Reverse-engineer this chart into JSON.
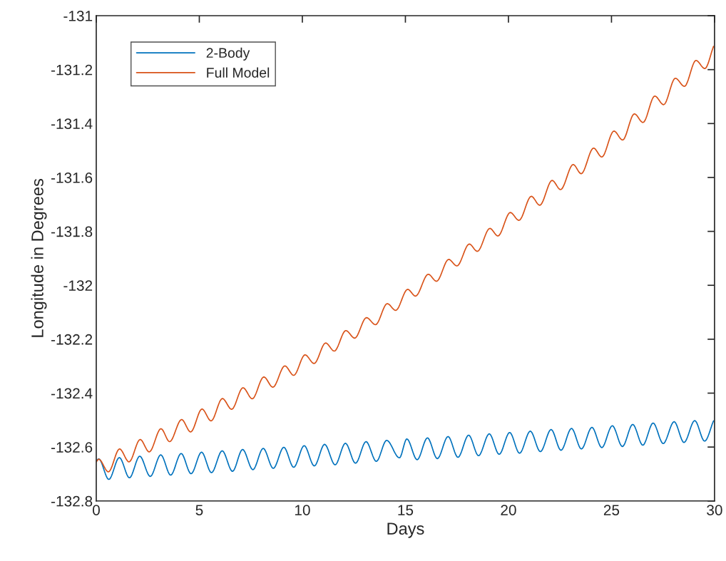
{
  "chart_data": {
    "type": "line",
    "xlabel": "Days",
    "ylabel": "Longitude in Degrees",
    "xlim": [
      0,
      30
    ],
    "ylim": [
      -132.8,
      -131
    ],
    "xticks": [
      0,
      5,
      10,
      15,
      20,
      25,
      30
    ],
    "yticks": [
      -132.8,
      -132.6,
      -132.4,
      -132.2,
      -132,
      -131.8,
      -131.6,
      -131.4,
      -131.2,
      -131
    ],
    "grid": false,
    "legend": "top left",
    "series": [
      {
        "name": "2-Body",
        "color": "#0072bd",
        "x": [
          0,
          0.12,
          0.61,
          1.12,
          1.61,
          2.11,
          2.62,
          3.13,
          3.61,
          4.12,
          4.6,
          5.11,
          5.59,
          6.11,
          6.61,
          7.1,
          7.6,
          8.1,
          8.59,
          9.1,
          9.58,
          10.09,
          10.58,
          11.08,
          11.59,
          12.09,
          12.58,
          13.09,
          13.59,
          14.09,
          14.71,
          15.07,
          15.57,
          16.07,
          16.55,
          17.07,
          17.55,
          18.07,
          18.55,
          19.07,
          19.55,
          20.06,
          20.54,
          21.06,
          21.55,
          22.07,
          22.55,
          23.06,
          23.54,
          24.05,
          24.53,
          25.04,
          25.53,
          26.03,
          26.52,
          27.02,
          27.51,
          28.04,
          28.52,
          29.04,
          29.52,
          29.95
        ],
        "values": [
          -132.651,
          -132.644,
          -132.72,
          -132.639,
          -132.714,
          -132.634,
          -132.709,
          -132.629,
          -132.704,
          -132.624,
          -132.699,
          -132.619,
          -132.695,
          -132.614,
          -132.69,
          -132.609,
          -132.684,
          -132.605,
          -132.679,
          -132.601,
          -132.675,
          -132.595,
          -132.67,
          -132.59,
          -132.666,
          -132.586,
          -132.66,
          -132.58,
          -132.653,
          -132.575,
          -132.64,
          -132.57,
          -132.647,
          -132.566,
          -132.643,
          -132.561,
          -132.638,
          -132.556,
          -132.632,
          -132.551,
          -132.627,
          -132.546,
          -132.623,
          -132.541,
          -132.617,
          -132.535,
          -132.612,
          -132.531,
          -132.607,
          -132.527,
          -132.602,
          -132.521,
          -132.598,
          -132.516,
          -132.593,
          -132.511,
          -132.587,
          -132.506,
          -132.583,
          -132.502,
          -132.578,
          -132.503
        ]
      },
      {
        "name": "Full Model",
        "color": "#d95319",
        "x": [
          0,
          0.12,
          0.59,
          1.13,
          1.59,
          2.13,
          2.57,
          3.14,
          3.56,
          4.14,
          4.58,
          5.13,
          5.57,
          6.12,
          6.57,
          7.12,
          7.57,
          8.13,
          8.57,
          9.15,
          9.58,
          10.13,
          10.57,
          11.13,
          11.55,
          12.11,
          12.54,
          13.11,
          13.55,
          14.12,
          14.53,
          15.11,
          15.49,
          16.11,
          16.51,
          17.1,
          17.5,
          18.1,
          18.49,
          19.1,
          19.49,
          20.09,
          20.51,
          21.11,
          21.52,
          22.12,
          22.53,
          23.14,
          23.53,
          24.13,
          24.53,
          25.12,
          25.54,
          26.11,
          26.53,
          27.1,
          27.53,
          28.1,
          28.54,
          29.1,
          29.53,
          29.95
        ],
        "values": [
          -132.655,
          -132.645,
          -132.692,
          -132.607,
          -132.655,
          -132.572,
          -132.618,
          -132.532,
          -132.58,
          -132.498,
          -132.544,
          -132.459,
          -132.503,
          -132.42,
          -132.46,
          -132.38,
          -132.421,
          -132.34,
          -132.378,
          -132.299,
          -132.334,
          -132.258,
          -132.29,
          -132.214,
          -132.244,
          -132.168,
          -132.196,
          -132.12,
          -132.146,
          -132.068,
          -132.093,
          -132.015,
          -132.04,
          -131.959,
          -131.985,
          -131.904,
          -131.928,
          -131.847,
          -131.874,
          -131.789,
          -131.817,
          -131.73,
          -131.759,
          -131.67,
          -131.703,
          -131.611,
          -131.645,
          -131.552,
          -131.586,
          -131.491,
          -131.524,
          -131.428,
          -131.461,
          -131.364,
          -131.396,
          -131.298,
          -131.33,
          -131.232,
          -131.262,
          -131.166,
          -131.196,
          -131.114
        ]
      }
    ]
  }
}
